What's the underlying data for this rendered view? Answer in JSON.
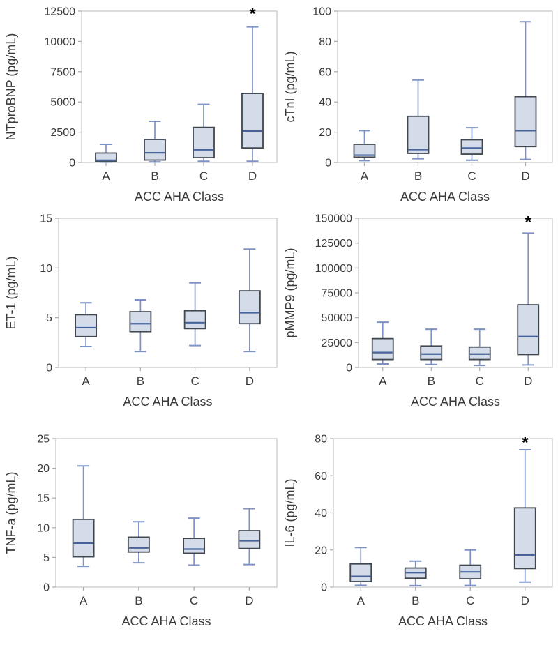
{
  "figure": {
    "background": "#ffffff",
    "xlabel_shared": "ACC AHA Class",
    "significance_symbol": "*"
  },
  "colors": {
    "box_fill": "#d5dce9",
    "box_border": "#40474f",
    "median_line": "#47639b",
    "whisker": "#7e92c5",
    "frame": "#c6c6c6",
    "tick_mark": "#a9a9a9",
    "text": "#3b3b3b",
    "star": "#000000"
  },
  "chart_data": [
    {
      "type": "box",
      "id": "ntprobnp",
      "ylabel": "NTproBNP (pg/mL)",
      "xlabel": "ACC AHA Class",
      "categories": [
        "A",
        "B",
        "C",
        "D"
      ],
      "ylim": [
        0,
        12500
      ],
      "yticks": [
        0,
        2500,
        5000,
        7500,
        10000,
        12500
      ],
      "boxes": [
        {
          "category": "A",
          "whisker_low": 30,
          "q1": 60,
          "median": 180,
          "q3": 780,
          "whisker_high": 1500
        },
        {
          "category": "B",
          "whisker_low": 50,
          "q1": 200,
          "median": 800,
          "q3": 1900,
          "whisker_high": 3400
        },
        {
          "category": "C",
          "whisker_low": 100,
          "q1": 400,
          "median": 1050,
          "q3": 2900,
          "whisker_high": 4800
        },
        {
          "category": "D",
          "whisker_low": 100,
          "q1": 1200,
          "median": 2600,
          "q3": 5700,
          "whisker_high": 11200
        }
      ],
      "significance": {
        "category": "D",
        "symbol": "*",
        "y": 12300
      }
    },
    {
      "type": "box",
      "id": "ctni",
      "ylabel": "cTnI (pg/mL)",
      "xlabel": "ACC AHA Class",
      "categories": [
        "A",
        "B",
        "C",
        "D"
      ],
      "ylim": [
        0,
        100
      ],
      "yticks": [
        0,
        20,
        40,
        60,
        80,
        100
      ],
      "boxes": [
        {
          "category": "A",
          "whisker_low": 1.2,
          "q1": 3.5,
          "median": 4.8,
          "q3": 12,
          "whisker_high": 21
        },
        {
          "category": "B",
          "whisker_low": 2.5,
          "q1": 6,
          "median": 8.5,
          "q3": 30.5,
          "whisker_high": 54.5
        },
        {
          "category": "C",
          "whisker_low": 1.5,
          "q1": 5.5,
          "median": 9.5,
          "q3": 15,
          "whisker_high": 23
        },
        {
          "category": "D",
          "whisker_low": 2,
          "q1": 10.5,
          "median": 21,
          "q3": 43.5,
          "whisker_high": 93
        }
      ],
      "significance": null
    },
    {
      "type": "box",
      "id": "et-1",
      "ylabel": "ET-1 (pg/mL)",
      "xlabel": "ACC AHA Class",
      "categories": [
        "A",
        "B",
        "C",
        "D"
      ],
      "ylim": [
        0,
        15
      ],
      "yticks": [
        0,
        5,
        10,
        15
      ],
      "boxes": [
        {
          "category": "A",
          "whisker_low": 2.1,
          "q1": 3.1,
          "median": 4.0,
          "q3": 5.3,
          "whisker_high": 6.5
        },
        {
          "category": "B",
          "whisker_low": 1.6,
          "q1": 3.6,
          "median": 4.4,
          "q3": 5.6,
          "whisker_high": 6.8
        },
        {
          "category": "C",
          "whisker_low": 2.2,
          "q1": 3.9,
          "median": 4.5,
          "q3": 5.7,
          "whisker_high": 8.5
        },
        {
          "category": "D",
          "whisker_low": 1.6,
          "q1": 4.4,
          "median": 5.5,
          "q3": 7.7,
          "whisker_high": 11.9
        }
      ],
      "significance": null
    },
    {
      "type": "box",
      "id": "pmmp9",
      "ylabel": "pMMP9 (pg/mL)",
      "xlabel": "ACC AHA Class",
      "categories": [
        "A",
        "B",
        "C",
        "D"
      ],
      "ylim": [
        0,
        150000
      ],
      "yticks": [
        0,
        25000,
        50000,
        75000,
        100000,
        125000,
        150000
      ],
      "boxes": [
        {
          "category": "A",
          "whisker_low": 3500,
          "q1": 8000,
          "median": 15000,
          "q3": 29000,
          "whisker_high": 45500
        },
        {
          "category": "B",
          "whisker_low": 3000,
          "q1": 8000,
          "median": 13500,
          "q3": 21500,
          "whisker_high": 38500
        },
        {
          "category": "C",
          "whisker_low": 2000,
          "q1": 8000,
          "median": 13500,
          "q3": 20500,
          "whisker_high": 38500
        },
        {
          "category": "D",
          "whisker_low": 2500,
          "q1": 13000,
          "median": 31000,
          "q3": 63000,
          "whisker_high": 135000
        }
      ],
      "significance": {
        "category": "D",
        "symbol": "*",
        "y": 146000
      }
    },
    {
      "type": "box",
      "id": "tnf-a",
      "ylabel": "TNF-a (pg/mL)",
      "xlabel": "ACC AHA Class",
      "categories": [
        "A",
        "B",
        "C",
        "D"
      ],
      "ylim": [
        0,
        25
      ],
      "yticks": [
        0,
        5,
        10,
        15,
        20,
        25
      ],
      "boxes": [
        {
          "category": "A",
          "whisker_low": 3.5,
          "q1": 5.1,
          "median": 7.4,
          "q3": 11.4,
          "whisker_high": 20.4
        },
        {
          "category": "B",
          "whisker_low": 4.1,
          "q1": 5.9,
          "median": 6.6,
          "q3": 8.4,
          "whisker_high": 11.0
        },
        {
          "category": "C",
          "whisker_low": 3.7,
          "q1": 5.7,
          "median": 6.4,
          "q3": 8.2,
          "whisker_high": 11.6
        },
        {
          "category": "D",
          "whisker_low": 3.8,
          "q1": 6.5,
          "median": 7.8,
          "q3": 9.5,
          "whisker_high": 13.2
        }
      ],
      "significance": null
    },
    {
      "type": "box",
      "id": "il-6",
      "ylabel": "IL-6 (pg/mL)",
      "xlabel": "ACC AHA Class",
      "categories": [
        "A",
        "B",
        "C",
        "D"
      ],
      "ylim": [
        0,
        80
      ],
      "yticks": [
        0,
        20,
        40,
        60,
        80
      ],
      "boxes": [
        {
          "category": "A",
          "whisker_low": 1.0,
          "q1": 3.0,
          "median": 5.8,
          "q3": 12.5,
          "whisker_high": 21.3
        },
        {
          "category": "B",
          "whisker_low": 0.8,
          "q1": 4.8,
          "median": 7.8,
          "q3": 10.3,
          "whisker_high": 14.0
        },
        {
          "category": "C",
          "whisker_low": 0.9,
          "q1": 4.5,
          "median": 8.2,
          "q3": 11.8,
          "whisker_high": 20.0
        },
        {
          "category": "D",
          "whisker_low": 2.7,
          "q1": 10.0,
          "median": 17.3,
          "q3": 42.7,
          "whisker_high": 74.0
        }
      ],
      "significance": {
        "category": "D",
        "symbol": "*",
        "y": 78
      }
    }
  ]
}
